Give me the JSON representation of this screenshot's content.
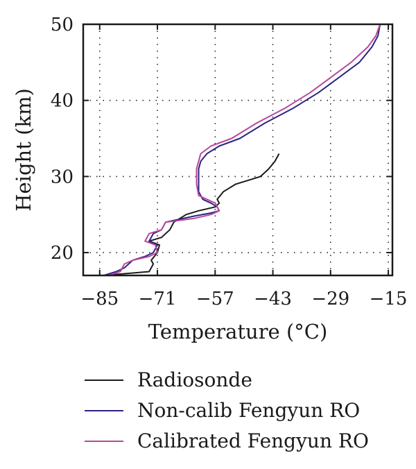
{
  "chart_data": {
    "type": "line",
    "xlabel": "Temperature (°C)",
    "ylabel": "Height (km)",
    "xlim": [
      -89,
      -14
    ],
    "ylim": [
      17,
      50
    ],
    "xticks": [
      -85,
      -71,
      -57,
      -43,
      -29,
      -15
    ],
    "yticks": [
      20,
      30,
      40,
      50
    ],
    "grid": true,
    "legend_position": "bottom",
    "series": [
      {
        "name": "Radiosonde",
        "color": "#1a1a1a",
        "points": [
          [
            -84,
            17
          ],
          [
            -73,
            17.5
          ],
          [
            -72,
            18.5
          ],
          [
            -72.5,
            19
          ],
          [
            -71,
            20
          ],
          [
            -70.5,
            21
          ],
          [
            -73,
            21.5
          ],
          [
            -70,
            22
          ],
          [
            -68,
            23
          ],
          [
            -67,
            24
          ],
          [
            -64,
            25
          ],
          [
            -61,
            25.5
          ],
          [
            -57,
            26
          ],
          [
            -56,
            26.5
          ],
          [
            -56.5,
            27
          ],
          [
            -55,
            28
          ],
          [
            -52,
            29
          ],
          [
            -49,
            29.5
          ],
          [
            -46,
            30
          ],
          [
            -44,
            31
          ],
          [
            -42.5,
            32
          ],
          [
            -41.5,
            33
          ]
        ]
      },
      {
        "name": "Non-calib Fengyun RO",
        "color": "#2b2480",
        "points": [
          [
            -84,
            17
          ],
          [
            -81,
            17.5
          ],
          [
            -79,
            18
          ],
          [
            -77,
            19
          ],
          [
            -74,
            19.5
          ],
          [
            -72,
            20
          ],
          [
            -71,
            21
          ],
          [
            -73,
            21.5
          ],
          [
            -72,
            22.5
          ],
          [
            -70,
            23
          ],
          [
            -69,
            24
          ],
          [
            -62,
            24.8
          ],
          [
            -58,
            25.2
          ],
          [
            -56,
            25.5
          ],
          [
            -56.5,
            26
          ],
          [
            -58,
            26.5
          ],
          [
            -60,
            27
          ],
          [
            -61,
            28
          ],
          [
            -61,
            30
          ],
          [
            -61,
            31
          ],
          [
            -60.5,
            32
          ],
          [
            -59,
            33
          ],
          [
            -56,
            34
          ],
          [
            -51,
            35
          ],
          [
            -45,
            37
          ],
          [
            -38,
            39
          ],
          [
            -32,
            41
          ],
          [
            -27,
            43
          ],
          [
            -22,
            45
          ],
          [
            -19,
            47
          ],
          [
            -17.5,
            48.5
          ],
          [
            -17,
            50
          ]
        ]
      },
      {
        "name": "Calibrated Fengyun RO",
        "color": "#b7479c",
        "points": [
          [
            -83,
            17
          ],
          [
            -80,
            17.5
          ],
          [
            -79,
            18.5
          ],
          [
            -77,
            19
          ],
          [
            -73,
            19.5
          ],
          [
            -71,
            20
          ],
          [
            -71.5,
            21
          ],
          [
            -74,
            21.5
          ],
          [
            -73,
            22.5
          ],
          [
            -70,
            23
          ],
          [
            -69,
            24
          ],
          [
            -62,
            24.5
          ],
          [
            -58,
            25
          ],
          [
            -56,
            25.5
          ],
          [
            -57,
            26.5
          ],
          [
            -59,
            27
          ],
          [
            -61,
            27.5
          ],
          [
            -61.5,
            29
          ],
          [
            -61.5,
            31
          ],
          [
            -60.5,
            33
          ],
          [
            -58,
            34
          ],
          [
            -53,
            35
          ],
          [
            -47,
            37
          ],
          [
            -40,
            39
          ],
          [
            -34,
            41
          ],
          [
            -29,
            43
          ],
          [
            -24,
            45
          ],
          [
            -20,
            47
          ],
          [
            -18,
            48.5
          ],
          [
            -17,
            50
          ]
        ]
      }
    ]
  }
}
